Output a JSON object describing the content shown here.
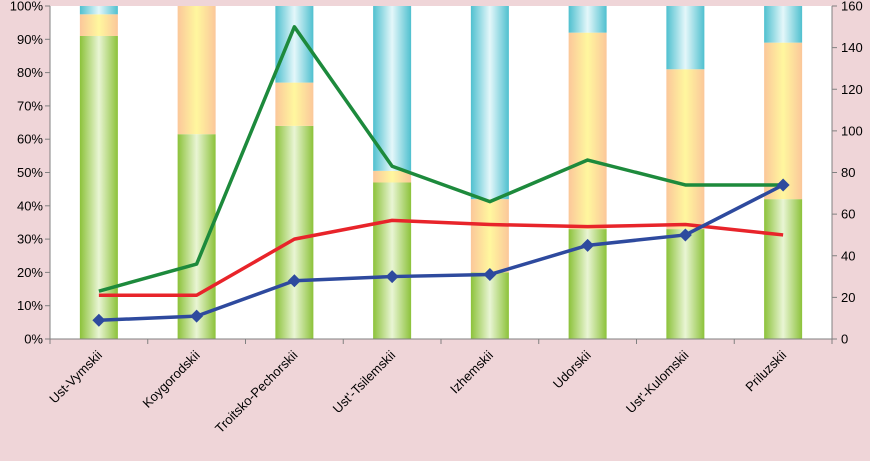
{
  "chart_data": {
    "type": "bar",
    "subtype": "stacked-percent-with-lines",
    "categories": [
      "Ust-Vymskii",
      "Koygorodskii",
      "Troitsko-Pechorskii",
      "Ust'-Tsilemskii",
      "Izhemskii",
      "Udorskii",
      "Ust'-Kulomskii",
      "Priluzskii"
    ],
    "stack_series": [
      {
        "color": "#9ccc4a",
        "values": [
          91,
          61.5,
          64,
          47,
          20,
          33,
          33,
          42
        ]
      },
      {
        "color": "#fbe38a",
        "values": [
          6.5,
          38.5,
          13,
          3.5,
          22,
          59,
          48,
          47
        ]
      },
      {
        "color": "#5ec6d6",
        "values": [
          2.5,
          0,
          23,
          49.5,
          58,
          8,
          19,
          11
        ]
      }
    ],
    "line_series": [
      {
        "color": "#1d8a3c",
        "marker": "none",
        "values": [
          23,
          36,
          150,
          83,
          66,
          86,
          74,
          74
        ]
      },
      {
        "color": "#e8242a",
        "marker": "none",
        "values": [
          21,
          21,
          48,
          57,
          55,
          54,
          55,
          50
        ]
      },
      {
        "color": "#2e4a9e",
        "marker": "diamond",
        "values": [
          9,
          11,
          28,
          30,
          31,
          45,
          50,
          74
        ]
      }
    ],
    "y_left": {
      "min": 0,
      "max": 100,
      "step": 10,
      "format": "percent",
      "ticks": [
        "0%",
        "10%",
        "20%",
        "30%",
        "40%",
        "50%",
        "60%",
        "70%",
        "80%",
        "90%",
        "100%"
      ]
    },
    "y_right": {
      "min": 0,
      "max": 160,
      "step": 20,
      "ticks": [
        "0",
        "20",
        "40",
        "60",
        "80",
        "100",
        "120",
        "140",
        "160"
      ]
    },
    "grid": false,
    "legend": "none"
  }
}
